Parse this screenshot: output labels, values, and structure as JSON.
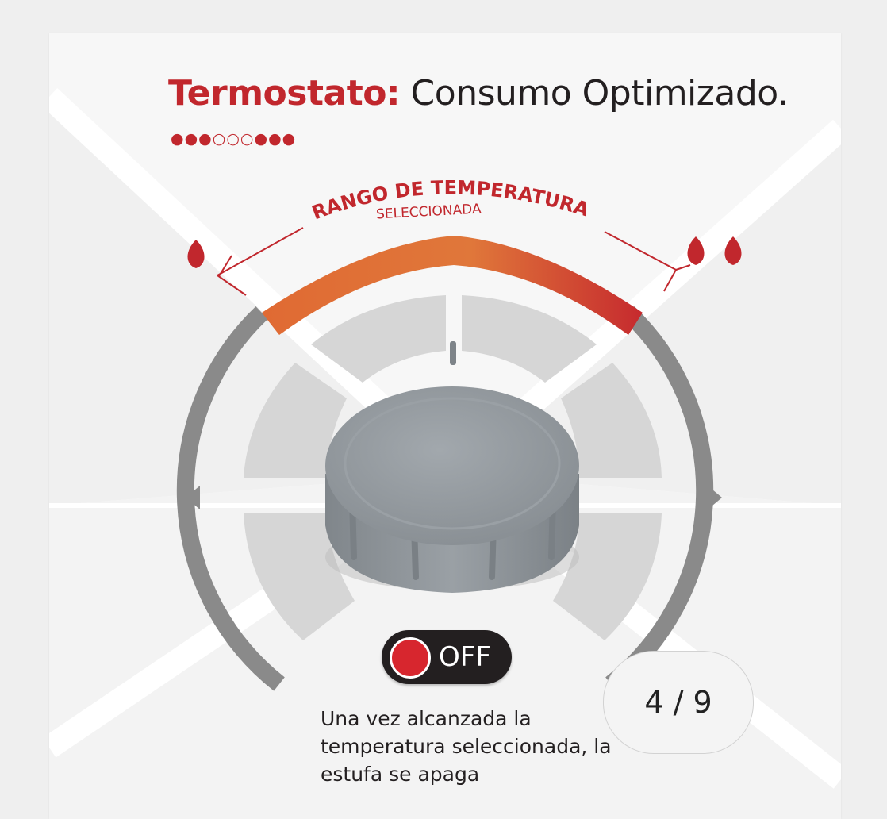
{
  "slide": {
    "title_accent": "Termostato:",
    "title_rest": " Consumo Optimizado.",
    "pager_filled_start": "●●●",
    "pager_empty": "○○○",
    "pager_filled_end": "●●●",
    "range_label_main": "RANGO DE TEMPERATURA",
    "range_label_sub": "SELECCIONADA",
    "low_flame_icon": "flame-icon",
    "high_flame_icon": "double-flame-icon",
    "off_label": "OFF",
    "caption": "Una vez alcanzada la temperatura seleccionada, la estufa se apaga"
  },
  "counter": {
    "text": "4 / 9",
    "current": 4,
    "total": 9
  },
  "colors": {
    "accent": "#c1272d",
    "range_orange": "#e07a36",
    "ring_gray": "#8a8a8a",
    "knob_gray": "#8e9499",
    "pill_bg": "#231f20",
    "off_dot": "#d7262e"
  }
}
